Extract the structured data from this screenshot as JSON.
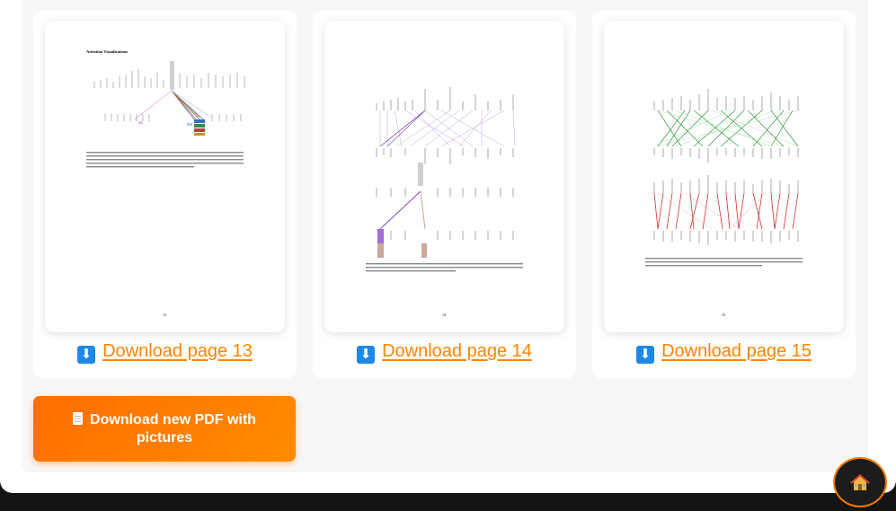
{
  "cards": [
    {
      "page_title": "Attention Visualizations",
      "caption": "Figure 3: An example of the attention mechanism following long-distance dependencies in the encoder self-attention in layer 5 of 6. Many of the attention heads attend to a distant dependency of the verb 'making', completing the phrase 'making...more difficult'. Attentions here shown only for the word 'making'. Different colors represent different heads. Best viewed in color.",
      "page_number": "13",
      "download_label": "Download page 13"
    },
    {
      "caption": "Figure 4: Two attention heads, also in layer 5 of 6, apparently involved in anaphora resolution. Top: Full attentions for head 5. Bottom: Isolated attentions from just the word 'its' for attention heads 5 and 6. Note that the attentions are very sharp for this word.",
      "page_number": "14",
      "download_label": "Download page 14"
    },
    {
      "caption": "Figure 5: Many of the attention heads exhibit behaviour that seems related to the structure of the sentence. We give two such examples above, from two different heads from the encoder self-attention at layer 5 of 6. The heads clearly learned to perform different tasks.",
      "page_number": "15",
      "download_label": "Download page 15"
    }
  ],
  "download_icon": "download-arrow-icon",
  "pdf_button": {
    "label": "Download new PDF with pictures",
    "icon": "document-icon"
  },
  "home_button": {
    "icon": "house-icon"
  },
  "colors": {
    "accent": "#ff8400",
    "link_icon": "#1e88e5",
    "background": "#141414"
  }
}
